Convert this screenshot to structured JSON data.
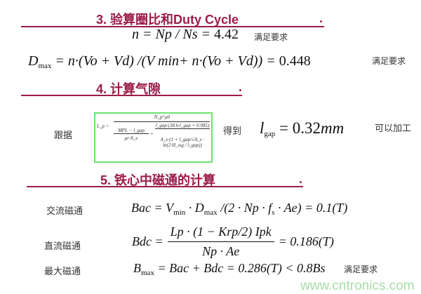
{
  "section3": {
    "heading": "3. 验算圈比和Duty Cycle",
    "dot": ".",
    "turns_ratio": {
      "lhs": "n",
      "expr": "= Np / Ns = ",
      "value": "4.42",
      "note": "满足要求"
    },
    "duty": {
      "lhs": "D",
      "lhs_sub": "max",
      "expr": "= n·(Vo + Vd) /(V min+ n·(Vo + Vd)) = ",
      "value": "0.448",
      "note": "满足要求"
    }
  },
  "section4": {
    "heading": "4. 计算气隙",
    "dot": ".",
    "basis_label": "跟据",
    "formula": {
      "lhs": "L_p =",
      "top": "N_p²·μ0",
      "t1_num": "MPL − l_gap",
      "t1_den": "μr·A_e",
      "t2_num": "l_gap·(38.6·l_gap + 0.985)",
      "t2_den": "A_e·(1 + l_gap/√A_e · ln(2·H_wg / l_gap))"
    },
    "result_label": "得到",
    "result": {
      "lhs": "l",
      "lhs_sub": "gap",
      "expr": "= 0.32",
      "unit": "mm"
    },
    "result_note": "可以加工"
  },
  "section5": {
    "heading": "5. 铁心中磁通的计算",
    "dot": ".",
    "ac": {
      "label": "交流磁通",
      "formula": "Bac = V",
      "sub1": "min",
      "mid": " · D",
      "sub2": "max",
      "rest": " /(2 · Np · f",
      "sub3": "s",
      "end": " · Ae) = 0.1(T)"
    },
    "dc": {
      "label": "直流磁通",
      "lhs": "Bdc =",
      "num": "Lp · (1 − Krp/2) Ipk",
      "den": "Np · Ae",
      "value": "= 0.186(T)"
    },
    "max": {
      "label": "最大磁通",
      "lhs": "B",
      "lhs_sub": "max",
      "expr": " = Bac + Bdc = 0.286(T) < 0.8Bs",
      "note": "满足要求"
    }
  },
  "watermark": "www.cntronics.com",
  "colors": {
    "heading": "#9b1c4a",
    "box_border": "#6be36b",
    "watermark": "#a8dca8"
  }
}
